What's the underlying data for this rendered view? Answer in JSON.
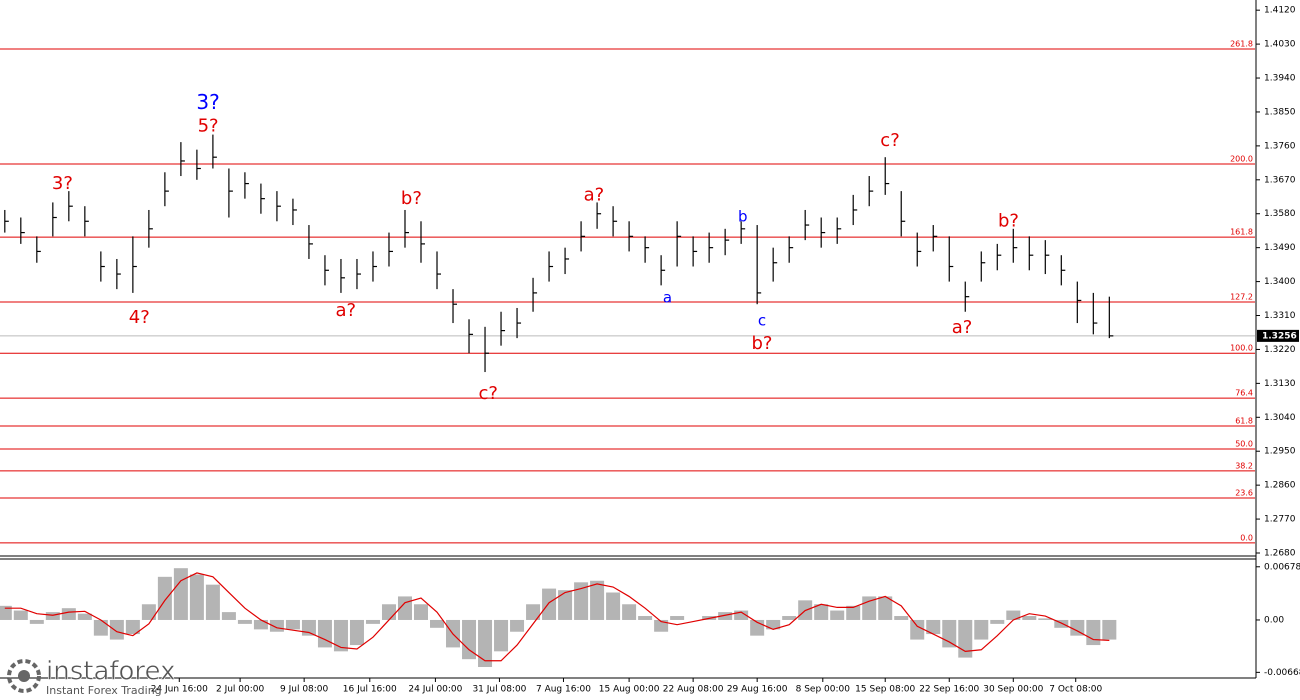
{
  "chart_data": {
    "type": "ohlc",
    "xlim": [
      -0.3,
      78.1
    ],
    "ylim": [
      1.268,
      1.4147
    ],
    "yticks": [
      {
        "value": 1.412,
        "label": "1.4120"
      },
      {
        "value": 1.403,
        "label": "1.4030"
      },
      {
        "value": 1.394,
        "label": "1.3940"
      },
      {
        "value": 1.385,
        "label": "1.3850"
      },
      {
        "value": 1.376,
        "label": "1.3760"
      },
      {
        "value": 1.367,
        "label": "1.3670"
      },
      {
        "value": 1.358,
        "label": "1.3580"
      },
      {
        "value": 1.349,
        "label": "1.3490"
      },
      {
        "value": 1.34,
        "label": "1.3400"
      },
      {
        "value": 1.331,
        "label": "1.3310"
      },
      {
        "value": 1.322,
        "label": "1.3220"
      },
      {
        "value": 1.313,
        "label": "1.3130"
      },
      {
        "value": 1.304,
        "label": "1.3040"
      },
      {
        "value": 1.295,
        "label": "1.2950"
      },
      {
        "value": 1.286,
        "label": "1.2860"
      },
      {
        "value": 1.277,
        "label": "1.2770"
      },
      {
        "value": 1.268,
        "label": "1.2680"
      }
    ],
    "xticks": [
      {
        "value": 10.9,
        "label": "24 Jun 16:00"
      },
      {
        "value": 14.7,
        "label": "2 Jul 00:00"
      },
      {
        "value": 18.7,
        "label": "9 Jul 08:00"
      },
      {
        "value": 22.8,
        "label": "16 Jul 16:00"
      },
      {
        "value": 26.9,
        "label": "24 Jul 00:00"
      },
      {
        "value": 30.9,
        "label": "31 Jul 08:00"
      },
      {
        "value": 34.9,
        "label": "7 Aug 16:00"
      },
      {
        "value": 39.0,
        "label": "15 Aug 00:00"
      },
      {
        "value": 43.0,
        "label": "22 Aug 08:00"
      },
      {
        "value": 47.0,
        "label": "29 Aug 16:00"
      },
      {
        "value": 51.1,
        "label": "8 Sep 00:00"
      },
      {
        "value": 55.0,
        "label": "15 Sep 08:00"
      },
      {
        "value": 59.0,
        "label": "22 Sep 16:00"
      },
      {
        "value": 63.0,
        "label": "30 Sep 00:00"
      },
      {
        "value": 66.9,
        "label": "7 Oct 08:00"
      }
    ],
    "bar_color": "#000000",
    "high": [
      1.359,
      1.357,
      1.352,
      1.361,
      1.364,
      1.36,
      1.348,
      1.346,
      1.352,
      1.359,
      1.369,
      1.377,
      1.375,
      1.379,
      1.37,
      1.369,
      1.366,
      1.364,
      1.362,
      1.355,
      1.347,
      1.346,
      1.346,
      1.348,
      1.353,
      1.359,
      1.356,
      1.348,
      1.338,
      1.33,
      1.328,
      1.332,
      1.333,
      1.341,
      1.348,
      1.349,
      1.356,
      1.361,
      1.36,
      1.356,
      1.352,
      1.347,
      1.356,
      1.352,
      1.353,
      1.354,
      1.356,
      1.355,
      1.349,
      1.352,
      1.359,
      1.357,
      1.357,
      1.363,
      1.368,
      1.373,
      1.364,
      1.353,
      1.355,
      1.352,
      1.34,
      1.348,
      1.35,
      1.354,
      1.352,
      1.351,
      1.347,
      1.34,
      1.337,
      1.336
    ],
    "low": [
      1.353,
      1.35,
      1.345,
      1.352,
      1.356,
      1.352,
      1.34,
      1.338,
      1.337,
      1.349,
      1.36,
      1.368,
      1.367,
      1.37,
      1.357,
      1.362,
      1.358,
      1.356,
      1.355,
      1.346,
      1.339,
      1.337,
      1.338,
      1.34,
      1.344,
      1.349,
      1.345,
      1.338,
      1.329,
      1.321,
      1.316,
      1.323,
      1.325,
      1.332,
      1.34,
      1.342,
      1.348,
      1.354,
      1.352,
      1.348,
      1.345,
      1.339,
      1.344,
      1.344,
      1.345,
      1.347,
      1.35,
      1.334,
      1.34,
      1.345,
      1.351,
      1.349,
      1.35,
      1.355,
      1.36,
      1.363,
      1.352,
      1.344,
      1.348,
      1.34,
      1.332,
      1.34,
      1.343,
      1.345,
      1.343,
      1.342,
      1.339,
      1.329,
      1.326,
      1.325
    ],
    "close": [
      1.356,
      1.353,
      1.348,
      1.357,
      1.36,
      1.356,
      1.344,
      1.342,
      1.344,
      1.354,
      1.364,
      1.372,
      1.37,
      1.373,
      1.364,
      1.366,
      1.362,
      1.36,
      1.359,
      1.35,
      1.343,
      1.341,
      1.342,
      1.344,
      1.348,
      1.353,
      1.35,
      1.342,
      1.334,
      1.326,
      1.321,
      1.327,
      1.329,
      1.337,
      1.344,
      1.346,
      1.352,
      1.358,
      1.356,
      1.352,
      1.349,
      1.343,
      1.352,
      1.348,
      1.349,
      1.351,
      1.354,
      1.337,
      1.345,
      1.349,
      1.355,
      1.353,
      1.354,
      1.359,
      1.364,
      1.366,
      1.356,
      1.348,
      1.352,
      1.344,
      1.336,
      1.345,
      1.347,
      1.349,
      1.347,
      1.347,
      1.343,
      1.335,
      1.329,
      1.3256
    ],
    "current_price": 1.3256,
    "fib_color": "#e00000",
    "fib_levels": [
      {
        "price": 1.4017,
        "label": "261.8"
      },
      {
        "price": 1.3712,
        "label": "200.0"
      },
      {
        "price": 1.3518,
        "label": "161.8"
      },
      {
        "price": 1.3346,
        "label": "127.2"
      },
      {
        "price": 1.321,
        "label": "100.0"
      },
      {
        "price": 1.3091,
        "label": "76.4"
      },
      {
        "price": 1.3017,
        "label": "61.8"
      },
      {
        "price": 1.2956,
        "label": "50.0"
      },
      {
        "price": 1.2898,
        "label": "38.2"
      },
      {
        "price": 1.2826,
        "label": "23.6"
      },
      {
        "price": 1.2707,
        "label": "0.0"
      }
    ],
    "annotations": [
      {
        "text": "3?",
        "x": 3.6,
        "y": 1.3659,
        "color": "#e00000",
        "size": 18
      },
      {
        "text": "4?",
        "x": 8.4,
        "y": 1.3303,
        "color": "#e00000",
        "size": 18
      },
      {
        "text": "3?",
        "x": 12.7,
        "y": 1.3873,
        "color": "#0000ff",
        "size": 20
      },
      {
        "text": "5?",
        "x": 12.7,
        "y": 1.3812,
        "color": "#e00000",
        "size": 18
      },
      {
        "text": "a?",
        "x": 21.3,
        "y": 1.3322,
        "color": "#e00000",
        "size": 18
      },
      {
        "text": "b?",
        "x": 25.4,
        "y": 1.3619,
        "color": "#e00000",
        "size": 18
      },
      {
        "text": "c?",
        "x": 30.2,
        "y": 1.3102,
        "color": "#e00000",
        "size": 18
      },
      {
        "text": "a?",
        "x": 36.8,
        "y": 1.3629,
        "color": "#e00000",
        "size": 18
      },
      {
        "text": "a",
        "x": 41.4,
        "y": 1.3356,
        "color": "#0000ff",
        "size": 15
      },
      {
        "text": "b",
        "x": 46.1,
        "y": 1.3571,
        "color": "#0000ff",
        "size": 15
      },
      {
        "text": "c",
        "x": 47.3,
        "y": 1.3295,
        "color": "#0000ff",
        "size": 15
      },
      {
        "text": "b?",
        "x": 47.3,
        "y": 1.3234,
        "color": "#e00000",
        "size": 18
      },
      {
        "text": "c?",
        "x": 55.3,
        "y": 1.3773,
        "color": "#e00000",
        "size": 18
      },
      {
        "text": "a?",
        "x": 59.8,
        "y": 1.3277,
        "color": "#e00000",
        "size": 18
      },
      {
        "text": "b?",
        "x": 62.7,
        "y": 1.356,
        "color": "#e00000",
        "size": 18
      }
    ],
    "macd": {
      "ylim": [
        -0.0074,
        0.0079
      ],
      "yticks": [
        {
          "value": 0.00678,
          "label": "0.00678"
        },
        {
          "value": 0,
          "label": "0.00"
        },
        {
          "value": -0.00668,
          "label": "-0.00668"
        }
      ],
      "hist_color": "#b4b4b4",
      "signal_color": "#e00000",
      "histogram": [
        0.0018,
        0.0012,
        -0.0005,
        0.001,
        0.0015,
        0.0008,
        -0.002,
        -0.0025,
        -0.0018,
        0.002,
        0.0055,
        0.0066,
        0.0058,
        0.0045,
        0.001,
        -0.0005,
        -0.0012,
        -0.0015,
        -0.0012,
        -0.002,
        -0.0035,
        -0.004,
        -0.0032,
        -0.0005,
        0.002,
        0.003,
        0.002,
        -0.001,
        -0.0035,
        -0.005,
        -0.006,
        -0.004,
        -0.0015,
        0.002,
        0.004,
        0.0038,
        0.0048,
        0.005,
        0.0035,
        0.002,
        0.0005,
        -0.0015,
        0.0005,
        0.0,
        0.0005,
        0.001,
        0.0012,
        -0.002,
        -0.0012,
        0.0005,
        0.0025,
        0.002,
        0.0012,
        0.0018,
        0.003,
        0.003,
        0.0005,
        -0.0025,
        -0.0018,
        -0.0035,
        -0.0048,
        -0.0025,
        -0.0005,
        0.0012,
        0.0005,
        0.0002,
        -0.001,
        -0.002,
        -0.0032,
        -0.0025
      ],
      "signal": [
        0.0015,
        0.0015,
        0.0008,
        0.0006,
        0.001,
        0.0011,
        0.0,
        -0.0015,
        -0.002,
        -0.0005,
        0.0025,
        0.005,
        0.006,
        0.0055,
        0.0035,
        0.0015,
        0.0,
        -0.001,
        -0.0013,
        -0.0016,
        -0.0025,
        -0.0035,
        -0.0037,
        -0.0022,
        0.0,
        0.0022,
        0.0028,
        0.001,
        -0.0018,
        -0.0038,
        -0.0052,
        -0.0052,
        -0.0032,
        -0.0005,
        0.0022,
        0.0035,
        0.004,
        0.0046,
        0.0042,
        0.003,
        0.0015,
        -0.0002,
        -0.0006,
        -0.0002,
        0.0002,
        0.0006,
        0.001,
        -0.0003,
        -0.0012,
        -0.0006,
        0.0012,
        0.002,
        0.0016,
        0.0016,
        0.0024,
        0.003,
        0.0018,
        -0.0008,
        -0.0018,
        -0.0028,
        -0.004,
        -0.0038,
        -0.002,
        0.0,
        0.0008,
        0.0005,
        -0.0004,
        -0.0014,
        -0.0025,
        -0.0026
      ]
    }
  },
  "watermark": {
    "brand": "instaforex",
    "tagline": "Instant Forex Trading"
  }
}
